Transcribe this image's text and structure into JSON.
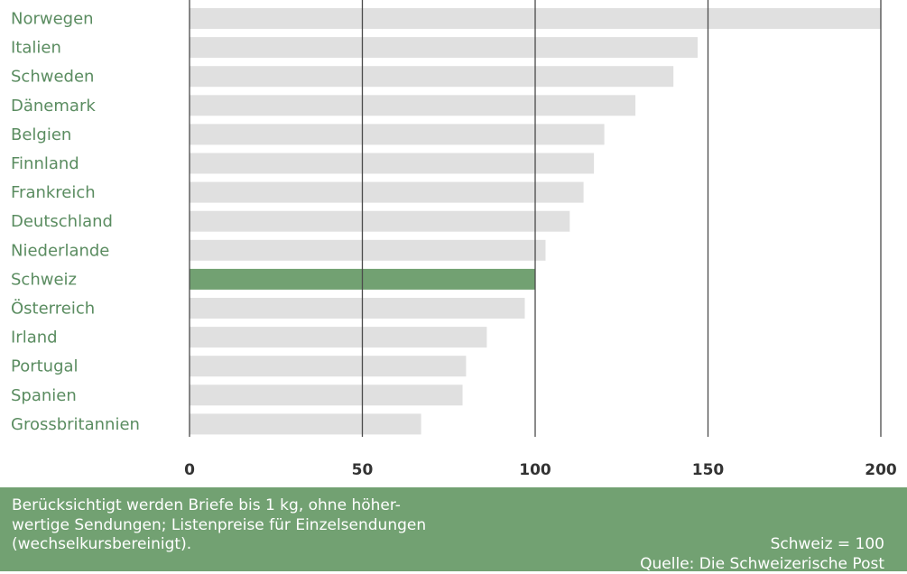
{
  "chart_data": {
    "type": "bar",
    "orientation": "horizontal",
    "categories": [
      "Norwegen",
      "Italien",
      "Schweden",
      "Dänemark",
      "Belgien",
      "Finnland",
      "Frankreich",
      "Deutschland",
      "Niederlande",
      "Schweiz",
      "Österreich",
      "Irland",
      "Portugal",
      "Spanien",
      "Grossbritannien"
    ],
    "values": [
      200,
      147,
      140,
      129,
      120,
      117,
      114,
      110,
      103,
      100,
      97,
      86,
      80,
      79,
      67
    ],
    "highlight": "Schweiz",
    "xlim": [
      0,
      200
    ],
    "xticks": [
      0,
      50,
      100,
      150,
      200
    ],
    "grid": true,
    "colors": {
      "bar": "#e0e0e0",
      "highlight": "#72a172",
      "label": "#5a8c60",
      "grid": "#4a4a4a"
    }
  },
  "footer": {
    "note": "Berücksichtigt werden Briefe bis 1 kg, ohne höher-\nwertige Sendungen; Listenpreise für Einzelsendungen\n(wechselkursbereinigt).",
    "index_label": "Schweiz = 100",
    "source": "Quelle: Die Schweizerische Post"
  }
}
